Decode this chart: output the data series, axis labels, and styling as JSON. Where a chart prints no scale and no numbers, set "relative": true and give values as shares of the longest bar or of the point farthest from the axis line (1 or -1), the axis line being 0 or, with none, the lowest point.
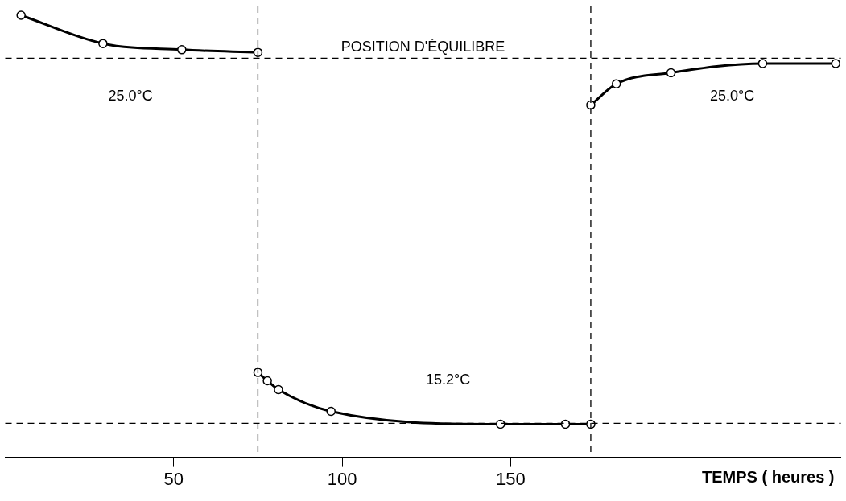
{
  "chart_data": {
    "type": "line",
    "relative": true,
    "xlabel": "TEMPS ( heures )",
    "xlim": [
      0,
      248
    ],
    "xticks": [
      50,
      100,
      150,
      {
        "value": 200,
        "label": null
      }
    ],
    "series": [
      {
        "color": "#000000",
        "x": [
          4.7,
          29,
          52.4,
          75
        ],
        "values": [
          1,
          0.936,
          0.922,
          0.916
        ]
      },
      {
        "color": "#000000",
        "x": [
          75,
          77.8,
          81.1,
          96.7,
          147,
          166.3,
          173.8
        ],
        "values": [
          0.192,
          0.173,
          0.153,
          0.104,
          0.075,
          0.075,
          0.075
        ]
      },
      {
        "color": "#000000",
        "x": [
          173.8,
          181.4,
          197.6,
          224.8,
          246.5
        ],
        "values": [
          0.797,
          0.845,
          0.87,
          0.891,
          0.891
        ]
      }
    ],
    "ref_lines": [
      {
        "axis": "y",
        "value": 0.903,
        "label": "POSITION D'ÉQUILIBRE",
        "line_style": "dashed"
      },
      {
        "axis": "y",
        "value": 0.077,
        "line_style": "dashed"
      },
      {
        "axis": "x",
        "value": 75,
        "line_style": "dashed"
      },
      {
        "axis": "x",
        "value": 173.8,
        "line_style": "dashed"
      }
    ],
    "annotations": [
      "25.0°C",
      "15.2°C",
      "25.0°C"
    ],
    "marker": "circle",
    "line_style": "solid",
    "legend": false,
    "grid": false
  }
}
